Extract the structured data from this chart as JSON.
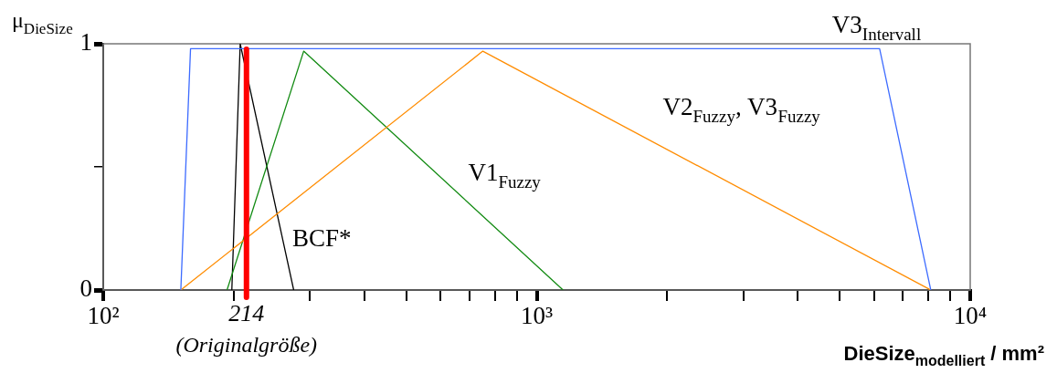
{
  "chart_data": {
    "type": "line",
    "ylabel": "μ$_{DieSize}$",
    "xlabel": "DieSize$_{modelliert}$ / mm²",
    "log": "x",
    "grid": false,
    "legend": false,
    "marker": "none",
    "line_style": "solid",
    "xlim": [
      100,
      10000
    ],
    "ylim": [
      0,
      1
    ],
    "xticks": [
      {
        "value": 100,
        "label": "10²"
      },
      {
        "value": 200,
        "label": null
      },
      {
        "value": 300,
        "label": null
      },
      {
        "value": 400,
        "label": null
      },
      {
        "value": 500,
        "label": null
      },
      {
        "value": 600,
        "label": null
      },
      {
        "value": 700,
        "label": null
      },
      {
        "value": 800,
        "label": null
      },
      {
        "value": 900,
        "label": null
      },
      {
        "value": 1000,
        "label": "10³"
      },
      {
        "value": 2000,
        "label": null
      },
      {
        "value": 3000,
        "label": null
      },
      {
        "value": 4000,
        "label": null
      },
      {
        "value": 5000,
        "label": null
      },
      {
        "value": 6000,
        "label": null
      },
      {
        "value": 7000,
        "label": null
      },
      {
        "value": 8000,
        "label": null
      },
      {
        "value": 9000,
        "label": null
      },
      {
        "value": 10000,
        "label": "10⁴"
      }
    ],
    "yticks": [
      0,
      {
        "value": 0.5,
        "label": null
      },
      1
    ],
    "series": [
      {
        "name": "V3$_{Intervall}$",
        "color": "#3d6bff",
        "x": [
          151,
          159,
          6180,
          8110
        ],
        "values": [
          0,
          0.98,
          0.98,
          0
        ]
      },
      {
        "name": "V2$_{Fuzzy}$, V3$_{Fuzzy}$",
        "color": "#ff8c00",
        "x": [
          151,
          751,
          8110
        ],
        "values": [
          0,
          0.97,
          0
        ]
      },
      {
        "name": "V1$_{Fuzzy}$",
        "color": "#118a11",
        "x": [
          193,
          290,
          1150
        ],
        "values": [
          0,
          0.97,
          0
        ]
      },
      {
        "name": "BCF*",
        "color": "#000000",
        "x": [
          198,
          207,
          275
        ],
        "values": [
          0,
          1,
          0
        ]
      }
    ],
    "ref_lines": [
      {
        "axis": "x",
        "value": 214,
        "label": "214",
        "color": "#ff0000"
      }
    ],
    "annotations": [
      "(Originalgröße)"
    ]
  }
}
